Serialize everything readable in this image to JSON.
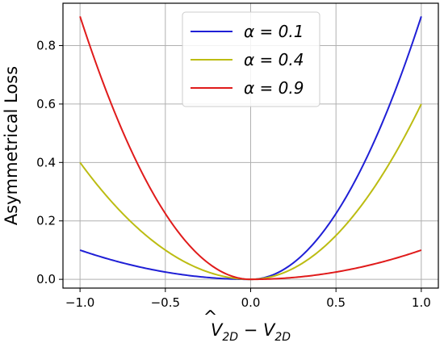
{
  "chart_data": {
    "type": "line",
    "title": "",
    "xlabel": "V̂_2D − V_2D",
    "xlabel_parts": {
      "main": "V",
      "hat": "^",
      "sub1": "2D",
      "minus": " − V",
      "sub2": "2D"
    },
    "ylabel": "Asymmetrical Loss",
    "xlim": [
      -1.1,
      1.1
    ],
    "ylim": [
      -0.03,
      0.945
    ],
    "xticks": [
      -1.0,
      -0.5,
      0.0,
      0.5,
      1.0
    ],
    "xtick_labels": [
      "−1.0",
      "−0.5",
      "0.0",
      "0.5",
      "1.0"
    ],
    "yticks": [
      0.0,
      0.2,
      0.4,
      0.6,
      0.8
    ],
    "ytick_labels": [
      "0.0",
      "0.2",
      "0.4",
      "0.6",
      "0.8"
    ],
    "grid": true,
    "legend_position": "top-center",
    "series": [
      {
        "name": "α = 0.1",
        "alpha": 0.1,
        "color": "#1f1fd6",
        "x": [
          -1.0,
          -0.75,
          -0.5,
          -0.25,
          0.0,
          0.25,
          0.5,
          0.75,
          1.0
        ],
        "y": [
          0.1,
          0.056,
          0.025,
          0.006,
          0.0,
          0.056,
          0.225,
          0.506,
          0.9
        ]
      },
      {
        "name": "α = 0.4",
        "alpha": 0.4,
        "color": "#bcbc12",
        "x": [
          -1.0,
          -0.75,
          -0.5,
          -0.25,
          0.0,
          0.25,
          0.5,
          0.75,
          1.0
        ],
        "y": [
          0.4,
          0.225,
          0.1,
          0.025,
          0.0,
          0.0375,
          0.15,
          0.3375,
          0.6
        ]
      },
      {
        "name": "α = 0.9",
        "alpha": 0.9,
        "color": "#e01b1b",
        "x": [
          -1.0,
          -0.75,
          -0.5,
          -0.25,
          0.0,
          0.25,
          0.5,
          0.75,
          1.0
        ],
        "y": [
          0.9,
          0.506,
          0.225,
          0.056,
          0.0,
          0.006,
          0.025,
          0.056,
          0.1
        ]
      }
    ]
  }
}
